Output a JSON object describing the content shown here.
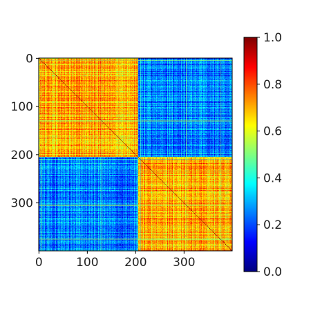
{
  "chart_data": {
    "type": "heatmap",
    "title": "",
    "xlabel": "",
    "ylabel": "",
    "colormap": "jet",
    "n_rows": 400,
    "n_cols": 400,
    "xlim": [
      0,
      400
    ],
    "ylim": [
      400,
      0
    ],
    "x_ticks": [
      0,
      100,
      200,
      300
    ],
    "x_tick_labels": [
      "0",
      "100",
      "200",
      "300"
    ],
    "y_ticks": [
      0,
      100,
      200,
      300
    ],
    "y_tick_labels": [
      "0",
      "100",
      "200",
      "300"
    ],
    "clusters": [
      {
        "start": 0,
        "end": 205
      },
      {
        "start": 205,
        "end": 400
      }
    ],
    "within_cluster_mean": 0.7,
    "between_cluster_mean": 0.25,
    "cell_noise": 0.12,
    "highlight_stripes": [
      {
        "index": 5,
        "value": 0.55
      },
      {
        "index": 130,
        "value": 0.52
      },
      {
        "index": 205,
        "value": 0.5
      },
      {
        "index": 210,
        "value": 0.45
      },
      {
        "index": 305,
        "value": 0.55
      },
      {
        "index": 375,
        "value": 0.5
      }
    ],
    "colorbar": {
      "min": 0.0,
      "max": 1.0,
      "ticks": [
        0.0,
        0.2,
        0.4,
        0.6,
        0.8,
        1.0
      ],
      "tick_labels": [
        "0.0",
        "0.2",
        "0.4",
        "0.6",
        "0.8",
        "1.0"
      ]
    },
    "grid": false
  }
}
